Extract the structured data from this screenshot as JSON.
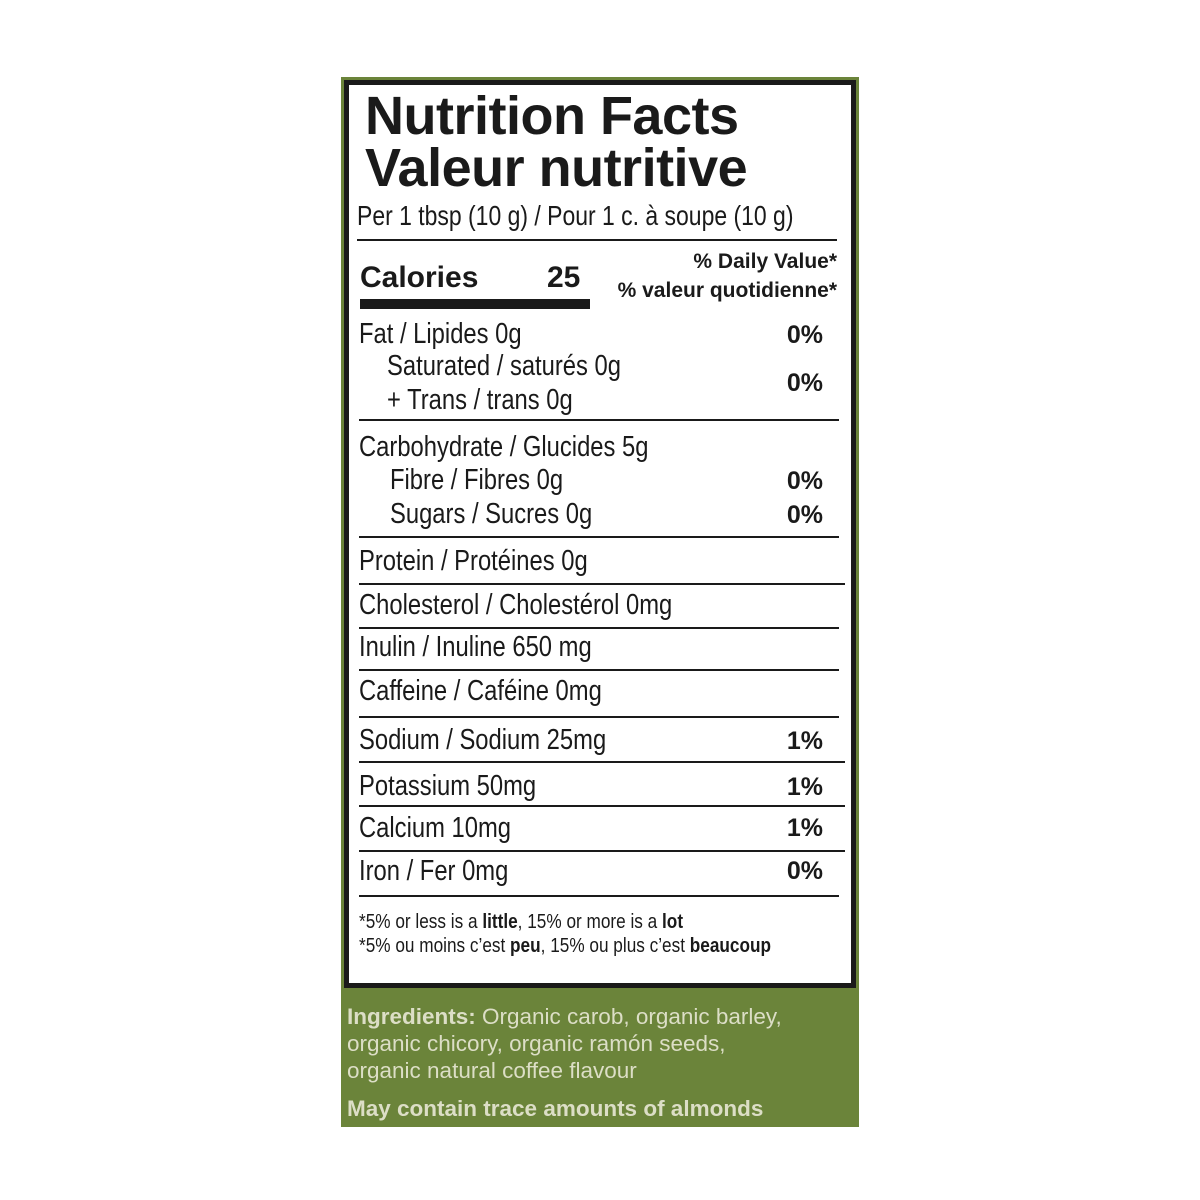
{
  "colors": {
    "panel_green": "#6b843a",
    "ingredients_text": "#dcdec6",
    "ink": "#1a1a1a"
  },
  "title_en": "Nutrition Facts",
  "title_fr": "Valeur nutritive",
  "serving": "Per 1 tbsp (10 g)  / Pour 1 c. à soupe (10 g)",
  "calories_label": "Calories",
  "calories_value": "25",
  "dv_en": "% Daily Value*",
  "dv_fr": "% valeur quotidienne*",
  "rows": {
    "fat": {
      "label": "Fat / Lipides 0g",
      "dv": "0%"
    },
    "saturated": {
      "label": "Saturated / saturés  0g"
    },
    "trans": {
      "label": "+ Trans / trans 0g",
      "dv": "0%"
    },
    "carb": {
      "label": "Carbohydrate / Glucides 5g"
    },
    "fibre": {
      "label": "Fibre / Fibres 0g",
      "dv": "0%"
    },
    "sugars": {
      "label": "Sugars / Sucres 0g",
      "dv": "0%"
    },
    "protein": {
      "label": "Protein / Protéines  0g"
    },
    "cholesterol": {
      "label": "Cholesterol / Cholestérol  0mg"
    },
    "inulin": {
      "label": "Inulin / Inuline  650 mg"
    },
    "caffeine": {
      "label": "Caffeine / Caféine 0mg"
    },
    "sodium": {
      "label": "Sodium / Sodium  25mg",
      "dv": "1%"
    },
    "potassium": {
      "label": "Potassium 50mg",
      "dv": "1%"
    },
    "calcium": {
      "label": "Calcium  10mg",
      "dv": "1%"
    },
    "iron": {
      "label": "Iron / Fer    0mg",
      "dv": "0%"
    }
  },
  "footnote_en": {
    "a": "*5% or less is a ",
    "b": "little",
    "c": ", 15% or more is a ",
    "d": "lot"
  },
  "footnote_fr": {
    "a": "*5% ou moins c’est ",
    "b": "peu",
    "c": ", 15% ou plus c’est ",
    "d": "beaucoup"
  },
  "ingredients": {
    "heading": "Ingredients:",
    "line1": " Organic carob, organic barley,",
    "line2": "organic chicory, organic ramón seeds,",
    "line3": "organic natural coffee flavour"
  },
  "allergen": "May contain trace amounts of almonds"
}
